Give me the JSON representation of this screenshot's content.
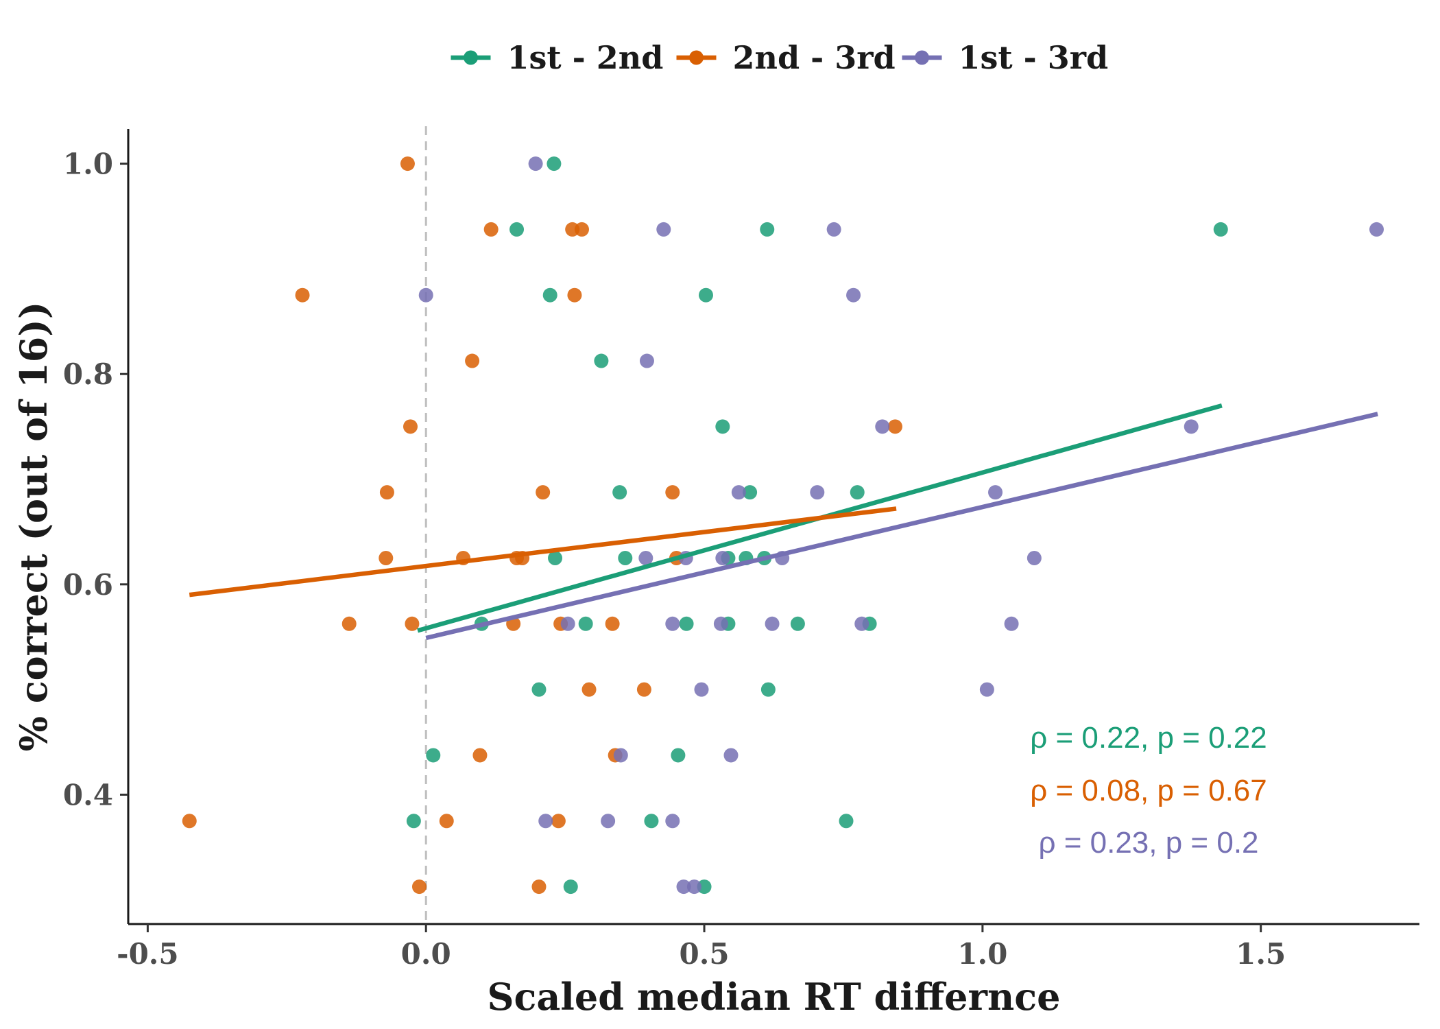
{
  "chart_data": {
    "type": "scatter",
    "title": "",
    "xlabel": "Scaled median RT differnce",
    "ylabel": "% correct (out of 16))",
    "xlim": [
      -0.535,
      1.785
    ],
    "ylim": [
      0.277,
      1.033
    ],
    "xticks": [
      -0.5,
      0.0,
      0.5,
      1.0,
      1.5
    ],
    "xtick_labels": [
      "-0.5",
      "0.0",
      "0.5",
      "1.0",
      "1.5"
    ],
    "yticks": [
      0.4,
      0.6,
      0.8,
      1.0
    ],
    "ytick_labels": [
      "0.4",
      "0.6",
      "0.8",
      "1.0"
    ],
    "vline": {
      "x": 0.0,
      "style": "dashed",
      "color": "#bfbfbf"
    },
    "grid": false,
    "legend": {
      "position": "top"
    },
    "series": [
      {
        "name": "1st - 2nd",
        "color": "#1b9e77",
        "points": [
          [
            0.23,
            1.0
          ],
          [
            0.163,
            0.9375
          ],
          [
            0.613,
            0.9375
          ],
          [
            1.428,
            0.9375
          ],
          [
            0.223,
            0.875
          ],
          [
            0.503,
            0.875
          ],
          [
            0.315,
            0.8125
          ],
          [
            0.533,
            0.75
          ],
          [
            0.348,
            0.6875
          ],
          [
            0.582,
            0.6875
          ],
          [
            0.775,
            0.6875
          ],
          [
            0.232,
            0.625
          ],
          [
            0.358,
            0.625
          ],
          [
            0.543,
            0.625
          ],
          [
            0.575,
            0.625
          ],
          [
            0.608,
            0.625
          ],
          [
            0.1,
            0.5625
          ],
          [
            0.287,
            0.5625
          ],
          [
            0.468,
            0.5625
          ],
          [
            0.543,
            0.5625
          ],
          [
            0.668,
            0.5625
          ],
          [
            0.797,
            0.5625
          ],
          [
            0.203,
            0.5
          ],
          [
            0.615,
            0.5
          ],
          [
            0.013,
            0.4375
          ],
          [
            0.453,
            0.4375
          ],
          [
            -0.022,
            0.375
          ],
          [
            0.405,
            0.375
          ],
          [
            0.755,
            0.375
          ],
          [
            0.26,
            0.3125
          ],
          [
            0.5,
            0.3125
          ]
        ],
        "fit": {
          "x": [
            -0.015,
            1.43
          ],
          "y": [
            0.556,
            0.77
          ]
        },
        "annotation": "ρ = 0.22, p = 0.22"
      },
      {
        "name": "2nd - 3rd",
        "color": "#d95f02",
        "points": [
          [
            -0.033,
            1.0
          ],
          [
            0.117,
            0.9375
          ],
          [
            0.263,
            0.9375
          ],
          [
            0.28,
            0.9375
          ],
          [
            -0.222,
            0.875
          ],
          [
            0.267,
            0.875
          ],
          [
            0.083,
            0.8125
          ],
          [
            -0.028,
            0.75
          ],
          [
            0.843,
            0.75
          ],
          [
            -0.07,
            0.6875
          ],
          [
            0.21,
            0.6875
          ],
          [
            0.443,
            0.6875
          ],
          [
            -0.072,
            0.625
          ],
          [
            0.067,
            0.625
          ],
          [
            0.163,
            0.625
          ],
          [
            0.173,
            0.625
          ],
          [
            0.45,
            0.625
          ],
          [
            -0.138,
            0.5625
          ],
          [
            -0.025,
            0.5625
          ],
          [
            0.157,
            0.5625
          ],
          [
            0.242,
            0.5625
          ],
          [
            0.335,
            0.5625
          ],
          [
            0.293,
            0.5
          ],
          [
            0.392,
            0.5
          ],
          [
            0.097,
            0.4375
          ],
          [
            0.34,
            0.4375
          ],
          [
            -0.425,
            0.375
          ],
          [
            0.037,
            0.375
          ],
          [
            0.238,
            0.375
          ],
          [
            -0.012,
            0.3125
          ],
          [
            0.203,
            0.3125
          ]
        ],
        "fit": {
          "x": [
            -0.425,
            0.845
          ],
          "y": [
            0.59,
            0.672
          ]
        },
        "annotation": "ρ = 0.08, p = 0.67"
      },
      {
        "name": "1st - 3rd",
        "color": "#7570b3",
        "points": [
          [
            0.197,
            1.0
          ],
          [
            0.427,
            0.9375
          ],
          [
            0.733,
            0.9375
          ],
          [
            1.708,
            0.9375
          ],
          [
            0.0,
            0.875
          ],
          [
            0.768,
            0.875
          ],
          [
            0.397,
            0.8125
          ],
          [
            0.82,
            0.75
          ],
          [
            1.375,
            0.75
          ],
          [
            0.562,
            0.6875
          ],
          [
            0.703,
            0.6875
          ],
          [
            1.023,
            0.6875
          ],
          [
            0.395,
            0.625
          ],
          [
            0.467,
            0.625
          ],
          [
            0.533,
            0.625
          ],
          [
            0.64,
            0.625
          ],
          [
            1.093,
            0.625
          ],
          [
            0.255,
            0.5625
          ],
          [
            0.443,
            0.5625
          ],
          [
            0.53,
            0.5625
          ],
          [
            0.622,
            0.5625
          ],
          [
            0.783,
            0.5625
          ],
          [
            1.052,
            0.5625
          ],
          [
            0.495,
            0.5
          ],
          [
            1.008,
            0.5
          ],
          [
            0.35,
            0.4375
          ],
          [
            0.548,
            0.4375
          ],
          [
            0.215,
            0.375
          ],
          [
            0.327,
            0.375
          ],
          [
            0.443,
            0.375
          ],
          [
            0.463,
            0.3125
          ],
          [
            0.482,
            0.3125
          ]
        ],
        "fit": {
          "x": [
            0.0,
            1.71
          ],
          "y": [
            0.549,
            0.762
          ]
        },
        "annotation": "ρ = 0.23, p = 0.2"
      }
    ]
  }
}
